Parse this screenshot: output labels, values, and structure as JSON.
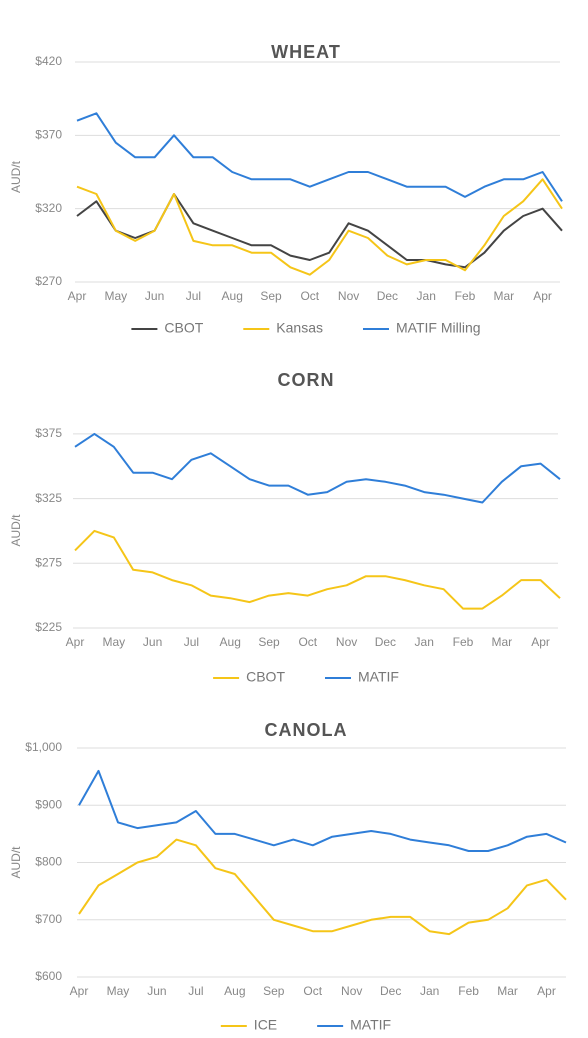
{
  "chart_data": [
    {
      "type": "line",
      "title": "WHEAT",
      "y_label": "AUD/t",
      "categories": [
        "Apr",
        null,
        "May",
        null,
        "Jun",
        null,
        "Jul",
        null,
        "Aug",
        null,
        "Sep",
        null,
        "Oct",
        null,
        "Nov",
        null,
        "Dec",
        null,
        "Jan",
        null,
        "Feb",
        null,
        "Mar",
        null,
        "Apr",
        null
      ],
      "ylim": [
        270,
        420
      ],
      "yticks": [
        {
          "value": 270,
          "label": "$270"
        },
        {
          "value": 320,
          "label": "$320"
        },
        {
          "value": 370,
          "label": "$370"
        },
        {
          "value": 420,
          "label": "$420"
        }
      ],
      "grid": true,
      "series": [
        {
          "name": "CBOT",
          "color": "#444444",
          "values": [
            315,
            325,
            305,
            300,
            305,
            330,
            310,
            305,
            300,
            295,
            295,
            288,
            285,
            290,
            310,
            305,
            295,
            285,
            285,
            282,
            280,
            290,
            305,
            315,
            320,
            305
          ]
        },
        {
          "name": "Kansas",
          "color": "#f5c518",
          "values": [
            335,
            330,
            305,
            298,
            305,
            330,
            298,
            295,
            295,
            290,
            290,
            280,
            275,
            285,
            305,
            300,
            288,
            282,
            285,
            285,
            278,
            295,
            315,
            325,
            340,
            320
          ]
        },
        {
          "name": "MATIF Milling",
          "color": "#2f7ed8",
          "values": [
            380,
            385,
            365,
            355,
            355,
            370,
            355,
            355,
            345,
            340,
            340,
            340,
            335,
            340,
            345,
            345,
            340,
            335,
            335,
            335,
            328,
            335,
            340,
            340,
            345,
            325
          ]
        }
      ]
    },
    {
      "type": "line",
      "title": "CORN",
      "y_label": "AUD/t",
      "categories": [
        "Apr",
        null,
        "May",
        null,
        "Jun",
        null,
        "Jul",
        null,
        "Aug",
        null,
        "Sep",
        null,
        "Oct",
        null,
        "Nov",
        null,
        "Dec",
        null,
        "Jan",
        null,
        "Feb",
        null,
        "Mar",
        null,
        "Apr",
        null
      ],
      "ylim": [
        225,
        395
      ],
      "yticks": [
        {
          "value": 225,
          "label": "$225"
        },
        {
          "value": 275,
          "label": "$275"
        },
        {
          "value": 325,
          "label": "$325"
        },
        {
          "value": 375,
          "label": "$375"
        }
      ],
      "grid": true,
      "series": [
        {
          "name": "CBOT",
          "color": "#f5c518",
          "values": [
            285,
            300,
            295,
            270,
            268,
            262,
            258,
            250,
            248,
            245,
            250,
            252,
            250,
            255,
            258,
            265,
            265,
            262,
            258,
            255,
            240,
            240,
            250,
            262,
            262,
            248
          ]
        },
        {
          "name": "MATIF",
          "color": "#2f7ed8",
          "values": [
            365,
            375,
            365,
            345,
            345,
            340,
            355,
            360,
            350,
            340,
            335,
            335,
            328,
            330,
            338,
            340,
            338,
            335,
            330,
            328,
            325,
            322,
            338,
            350,
            352,
            340
          ]
        }
      ]
    },
    {
      "type": "line",
      "title": "CANOLA",
      "y_label": "AUD/t",
      "categories": [
        "Apr",
        null,
        "May",
        null,
        "Jun",
        null,
        "Jul",
        null,
        "Aug",
        null,
        "Sep",
        null,
        "Oct",
        null,
        "Nov",
        null,
        "Dec",
        null,
        "Jan",
        null,
        "Feb",
        null,
        "Mar",
        null,
        "Apr",
        null
      ],
      "ylim": [
        600,
        1000
      ],
      "yticks": [
        {
          "value": 600,
          "label": "$600"
        },
        {
          "value": 700,
          "label": "$700"
        },
        {
          "value": 800,
          "label": "$800"
        },
        {
          "value": 900,
          "label": "$900"
        },
        {
          "value": 1000,
          "label": "$1,000"
        }
      ],
      "grid": true,
      "series": [
        {
          "name": "ICE",
          "color": "#f5c518",
          "values": [
            710,
            760,
            780,
            800,
            810,
            840,
            830,
            790,
            780,
            740,
            700,
            690,
            680,
            680,
            690,
            700,
            705,
            705,
            680,
            675,
            695,
            700,
            720,
            760,
            770,
            735
          ]
        },
        {
          "name": "MATIF",
          "color": "#2f7ed8",
          "values": [
            900,
            960,
            870,
            860,
            865,
            870,
            890,
            850,
            850,
            840,
            830,
            840,
            830,
            845,
            850,
            855,
            850,
            840,
            835,
            830,
            820,
            820,
            830,
            845,
            850,
            835
          ]
        }
      ]
    }
  ]
}
